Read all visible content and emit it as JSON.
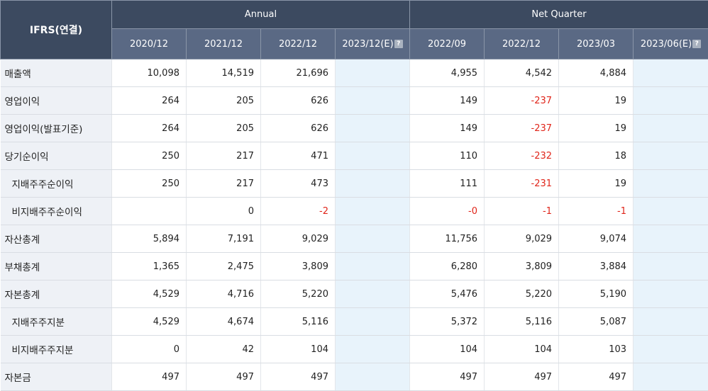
{
  "header": {
    "corner": "IFRS(연결)",
    "annual": "Annual",
    "quarter": "Net Quarter",
    "periods": [
      "2020/12",
      "2021/12",
      "2022/12",
      "2023/12(E)",
      "2022/09",
      "2022/12",
      "2023/03",
      "2023/06(E)"
    ],
    "estimate_badge": "?"
  },
  "rows": [
    {
      "label": "매출액",
      "values": [
        "10,098",
        "14,519",
        "21,696",
        "",
        "4,955",
        "4,542",
        "4,884",
        ""
      ]
    },
    {
      "label": "영업이익",
      "values": [
        "264",
        "205",
        "626",
        "",
        "149",
        "-237",
        "19",
        ""
      ]
    },
    {
      "label": "영업이익(발표기준)",
      "values": [
        "264",
        "205",
        "626",
        "",
        "149",
        "-237",
        "19",
        ""
      ]
    },
    {
      "label": "당기순이익",
      "values": [
        "250",
        "217",
        "471",
        "",
        "110",
        "-232",
        "18",
        ""
      ]
    },
    {
      "label": "지배주주순이익",
      "values": [
        "250",
        "217",
        "473",
        "",
        "111",
        "-231",
        "19",
        ""
      ]
    },
    {
      "label": "비지배주주순이익",
      "values": [
        "",
        "0",
        "-2",
        "",
        "-0",
        "-1",
        "-1",
        ""
      ]
    },
    {
      "label": "자산총계",
      "values": [
        "5,894",
        "7,191",
        "9,029",
        "",
        "11,756",
        "9,029",
        "9,074",
        ""
      ]
    },
    {
      "label": "부채총계",
      "values": [
        "1,365",
        "2,475",
        "3,809",
        "",
        "6,280",
        "3,809",
        "3,884",
        ""
      ]
    },
    {
      "label": "자본총계",
      "values": [
        "4,529",
        "4,716",
        "5,220",
        "",
        "5,476",
        "5,220",
        "5,190",
        ""
      ]
    },
    {
      "label": "지배주주지분",
      "values": [
        "4,529",
        "4,674",
        "5,116",
        "",
        "5,372",
        "5,116",
        "5,087",
        ""
      ]
    },
    {
      "label": "비지배주주지분",
      "values": [
        "0",
        "42",
        "104",
        "",
        "104",
        "104",
        "103",
        ""
      ]
    },
    {
      "label": "자본금",
      "values": [
        "497",
        "497",
        "497",
        "",
        "497",
        "497",
        "497",
        ""
      ]
    }
  ],
  "colors": {
    "negative": "#e0251a",
    "header_dark": "#3c4a60",
    "header_light": "#5a6984",
    "estimate_bg": "#e8f3fb"
  }
}
